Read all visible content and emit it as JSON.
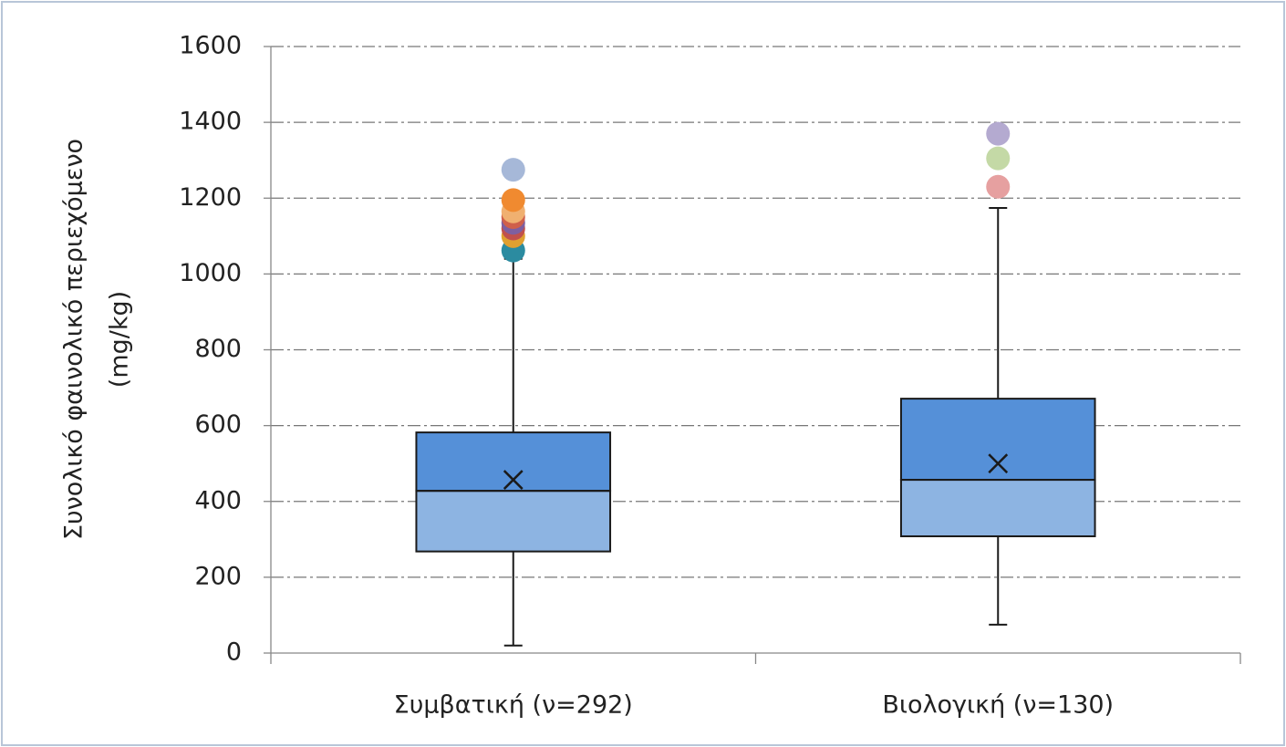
{
  "chart_data": {
    "type": "box",
    "y_label": [
      "Συνολικό φαινολικό περιεχόμενο",
      "(mg/kg)"
    ],
    "categories": [
      "Συμβατική (ν=292)",
      "Βιολογική (ν=130)"
    ],
    "boxes": [
      {
        "whisker_low": 20,
        "q1": 268,
        "median": 428,
        "q3": 582,
        "whisker_high": 1040,
        "mean": 457,
        "outliers": [
          1062,
          1100,
          1120,
          1135,
          1150,
          1165,
          1195,
          1275
        ],
        "outlier_colors": [
          "#2b8ba0",
          "#e0a030",
          "#c0504d",
          "#7e5fa0",
          "#d0604a",
          "#f0b070",
          "#f08a30",
          "#a6b8d8"
        ]
      },
      {
        "whisker_low": 75,
        "q1": 308,
        "median": 457,
        "q3": 671,
        "whisker_high": 1174,
        "mean": 500,
        "outliers": [
          1230,
          1305,
          1370
        ],
        "outlier_colors": [
          "#e6a0a0",
          "#c4d9a6",
          "#b4aad0"
        ]
      }
    ],
    "box_colors": [
      "#8db4e2",
      "#5590d8"
    ],
    "ylim": [
      0,
      1600
    ],
    "yticks": [
      0,
      200,
      400,
      600,
      800,
      1000,
      1200,
      1400,
      1600
    ],
    "grid": true
  }
}
